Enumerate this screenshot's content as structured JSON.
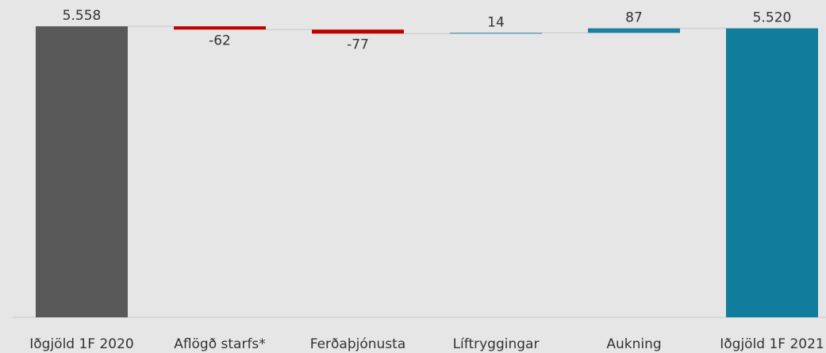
{
  "chart_data": {
    "type": "waterfall",
    "categories": [
      "Iðgjöld 1F 2020",
      "Aflögð starfs*",
      "Ferðaþjónusta",
      "Líftryggingar",
      "Aukning",
      "Iðgjöld 1F 2021"
    ],
    "values": [
      5558,
      -62,
      -77,
      14,
      87,
      5520
    ],
    "value_labels": [
      "5.558",
      "-62",
      "-77",
      "14",
      "87",
      "5.520"
    ],
    "measures": [
      "total",
      "relative",
      "relative",
      "relative",
      "relative",
      "total"
    ],
    "colors": [
      "#595959",
      "#c00000",
      "#c00000",
      "#1b7fa0",
      "#1b7fa0",
      "#117c9c"
    ],
    "ylim": [
      0,
      6000
    ]
  }
}
